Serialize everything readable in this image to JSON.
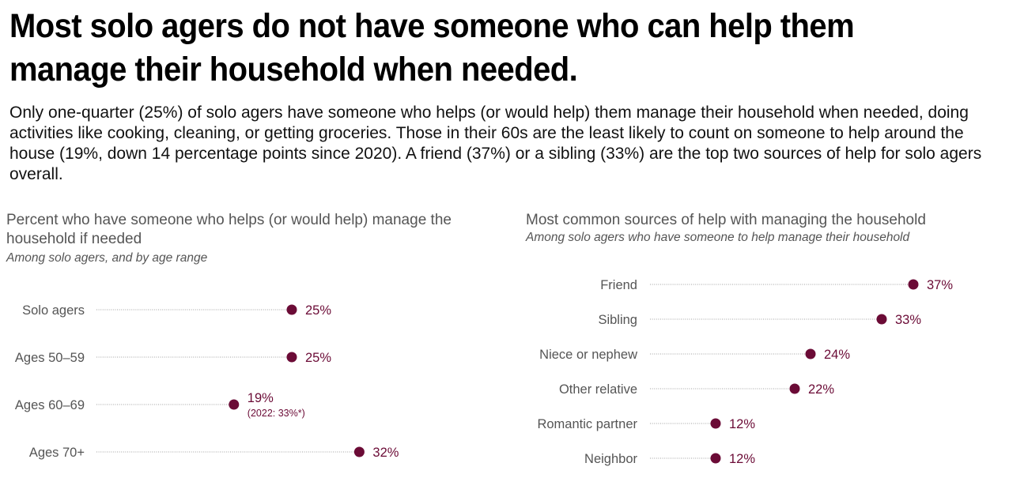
{
  "headline": "Most solo agers do not have someone who can help them manage their household when needed.",
  "intro": "Only one-quarter (25%) of solo agers have someone who helps (or would help) them manage their household when needed, doing activities like cooking, cleaning, or getting groceries. Those in their 60s are the least likely to count on someone to help around the house (19%, down 14 percentage points since 2020). A friend (37%) or a sibling (33%) are the top two sources of help for solo agers overall.",
  "colors": {
    "dot": "#6b0b36",
    "label": "#555555",
    "leader": "#a0a0a0"
  },
  "chart_data": [
    {
      "type": "dot",
      "title": "Percent who have someone who helps (or would help) manage the household if needed",
      "subtitle": "Among solo agers, and by age range",
      "categories": [
        "Solo agers",
        "Ages 50–59",
        "Ages 60–69",
        "Ages 70+"
      ],
      "values": [
        25,
        25,
        19,
        32
      ],
      "value_labels": [
        "25%",
        "25%",
        "19%",
        "32%"
      ],
      "notes": [
        "",
        "",
        "(2022: 33%*)",
        ""
      ],
      "unit": "%",
      "grid": false
    },
    {
      "type": "dot",
      "title": "Most common sources of help with managing the household",
      "subtitle": "Among solo agers who have someone to help manage their household",
      "categories": [
        "Friend",
        "Sibling",
        "Niece or nephew",
        "Other relative",
        "Romantic partner",
        "Neighbor"
      ],
      "values": [
        37,
        33,
        24,
        22,
        12,
        12
      ],
      "value_labels": [
        "37%",
        "33%",
        "24%",
        "22%",
        "12%",
        "12%"
      ],
      "unit": "%",
      "grid": false
    }
  ]
}
